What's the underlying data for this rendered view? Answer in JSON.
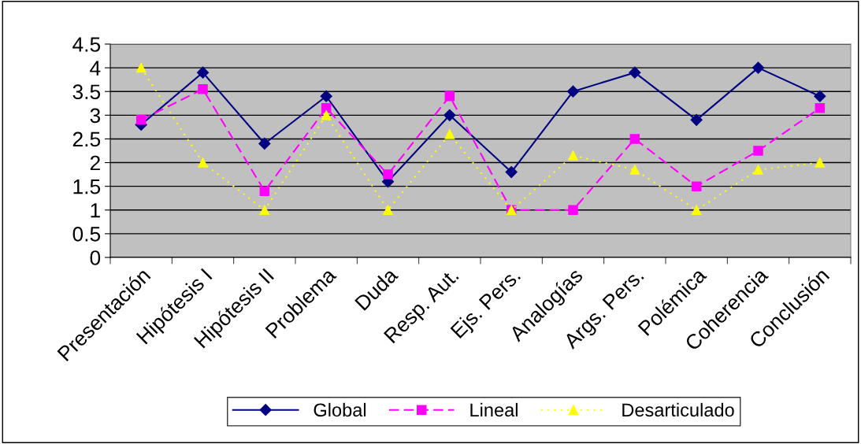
{
  "chart_data": {
    "type": "line",
    "categories": [
      "Presentación",
      "Hipótesis I",
      "Hipótesis II",
      "Problema",
      "Duda",
      "Resp. Aut.",
      "Ejs. Pers.",
      "Analogías",
      "Args. Pers.",
      "Polémica",
      "Coherencia",
      "Conclusión"
    ],
    "series": [
      {
        "name": "Global",
        "color": "#000080",
        "marker": "diamond",
        "line_style": "solid",
        "values": [
          2.8,
          3.9,
          2.4,
          3.4,
          1.6,
          3.0,
          1.8,
          3.5,
          3.9,
          2.9,
          4.0,
          3.4
        ]
      },
      {
        "name": "Lineal",
        "color": "#ff00ff",
        "marker": "square",
        "line_style": "dashed",
        "values": [
          2.9,
          3.55,
          1.4,
          3.15,
          1.75,
          3.4,
          1.0,
          1.0,
          2.5,
          1.5,
          2.25,
          3.15
        ]
      },
      {
        "name": "Desarticulado",
        "color": "#ffff00",
        "marker": "triangle",
        "line_style": "dotted",
        "values": [
          4.0,
          2.0,
          1.0,
          3.0,
          1.0,
          2.6,
          1.0,
          2.15,
          1.85,
          1.0,
          1.85,
          2.0
        ]
      }
    ],
    "ylim": [
      0,
      4.5
    ],
    "yticks": [
      0,
      0.5,
      1,
      1.5,
      2,
      2.5,
      3,
      3.5,
      4,
      4.5
    ],
    "grid": "y",
    "legend": "bottom"
  }
}
